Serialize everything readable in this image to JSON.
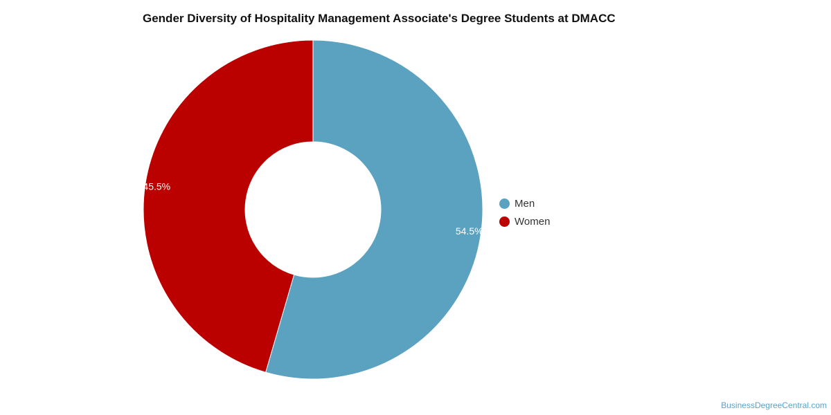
{
  "chart_data": {
    "type": "pie",
    "title": "Gender Diversity of Hospitality Management Associate's Degree Students at DMACC",
    "donut": true,
    "series": [
      {
        "name": "Men",
        "value": 54.5,
        "label": "54.5%",
        "color": "#5ba2c0"
      },
      {
        "name": "Women",
        "value": 45.5,
        "label": "45.5%",
        "color": "#bb0000"
      }
    ],
    "legend_position": "right"
  },
  "watermark": "BusinessDegreeCentral.com"
}
